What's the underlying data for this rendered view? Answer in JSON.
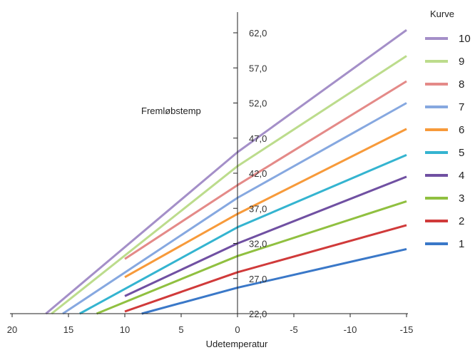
{
  "chart_data": {
    "type": "line",
    "xlabel": "Udetemperatur",
    "ylabel": "Fremløbstemp",
    "xlim": [
      20,
      -15
    ],
    "ylim": [
      22,
      62
    ],
    "x_ticks": [
      20,
      15,
      10,
      5,
      0,
      -5,
      -10,
      -15
    ],
    "y_ticks": [
      "22,0",
      "27,0",
      "32,0",
      "37,0",
      "42,0",
      "47,0",
      "52,0",
      "57,0",
      "62,0"
    ],
    "y_tick_values": [
      22,
      27,
      32,
      37,
      42,
      47,
      52,
      57,
      62
    ],
    "grid": false,
    "legend": {
      "title": "Kurve",
      "position": "right"
    },
    "series": [
      {
        "name": "10",
        "color": "#a48fc8",
        "points": [
          [
            17,
            22
          ],
          [
            0,
            45
          ],
          [
            -15,
            62.4
          ]
        ]
      },
      {
        "name": "9",
        "color": "#bcdc8c",
        "points": [
          [
            16.5,
            22
          ],
          [
            0,
            43
          ],
          [
            -15,
            58.7
          ]
        ]
      },
      {
        "name": "8",
        "color": "#e48a88",
        "points": [
          [
            10,
            29.8
          ],
          [
            0,
            40.3
          ],
          [
            -15,
            55.1
          ]
        ]
      },
      {
        "name": "7",
        "color": "#86a8e0",
        "points": [
          [
            15.5,
            22
          ],
          [
            0,
            38.5
          ],
          [
            -15,
            52
          ]
        ]
      },
      {
        "name": "6",
        "color": "#f79a3a",
        "points": [
          [
            10,
            27.2
          ],
          [
            0,
            36.2
          ],
          [
            -15,
            48.3
          ]
        ]
      },
      {
        "name": "5",
        "color": "#34b4d0",
        "points": [
          [
            14,
            22
          ],
          [
            0,
            34.3
          ],
          [
            -15,
            44.6
          ]
        ]
      },
      {
        "name": "4",
        "color": "#7050a2",
        "points": [
          [
            10,
            24.5
          ],
          [
            0,
            32
          ],
          [
            -15,
            41.5
          ]
        ]
      },
      {
        "name": "3",
        "color": "#90c040",
        "points": [
          [
            12.5,
            22
          ],
          [
            0,
            30.2
          ],
          [
            -15,
            38
          ]
        ]
      },
      {
        "name": "2",
        "color": "#d03a3a",
        "points": [
          [
            10,
            22.3
          ],
          [
            0,
            27.9
          ],
          [
            -15,
            34.6
          ]
        ]
      },
      {
        "name": "1",
        "color": "#3a78c8",
        "points": [
          [
            8.5,
            22
          ],
          [
            0,
            25.7
          ],
          [
            -15,
            31.2
          ]
        ]
      }
    ]
  }
}
